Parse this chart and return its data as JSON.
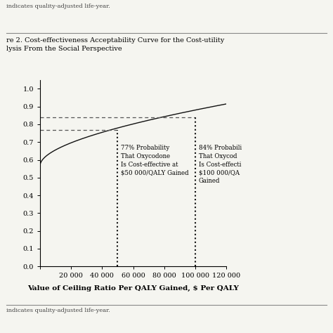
{
  "title_line1": "re 2. Cost-effectiveness Acceptability Curve for the Cost-utility",
  "title_line2": "lysis From the Social Perspective",
  "xlabel": "Value of Ceiling Ratio Per QALY Gained, $ Per QALY",
  "xlim": [
    0,
    120000
  ],
  "ylim": [
    0.0,
    1.05
  ],
  "yticks": [
    0.0,
    0.1,
    0.2,
    0.3,
    0.4,
    0.5,
    0.6,
    0.7,
    0.8,
    0.9,
    1.0
  ],
  "xticks": [
    0,
    20000,
    40000,
    60000,
    80000,
    100000,
    120000
  ],
  "xticklabels": [
    "",
    "20 000",
    "40 000",
    "60 000",
    "80 000",
    "100 000",
    "120 000"
  ],
  "yticklabels": [
    "0.0",
    "0.1",
    "0.2",
    "0.3",
    "0.4",
    "0.5",
    "0.6",
    "0.7",
    "0.8",
    "0.9",
    "1.0"
  ],
  "dashed_line_y1": 0.77,
  "dashed_line_y2": 0.84,
  "vline_x1": 50000,
  "vline_x2": 100000,
  "annotation1_text": "77% Probability\nThat Oxycodone\nIs Cost-effective at\n$50 000/QALY Gained",
  "annotation2_text": "84% Probabili\nThat Oxycod\nIs Cost-effecti\n$100 000/QA\nGained",
  "curve_color": "#111111",
  "dashed_color": "#555555",
  "dotted_color": "#111111",
  "background_color": "#f5f5f0",
  "top_note": "indicates quality-adjusted life-year.",
  "bottom_note": "indicates quality-adjusted life-year.",
  "figsize": [
    4.74,
    4.74
  ],
  "dpi": 100
}
